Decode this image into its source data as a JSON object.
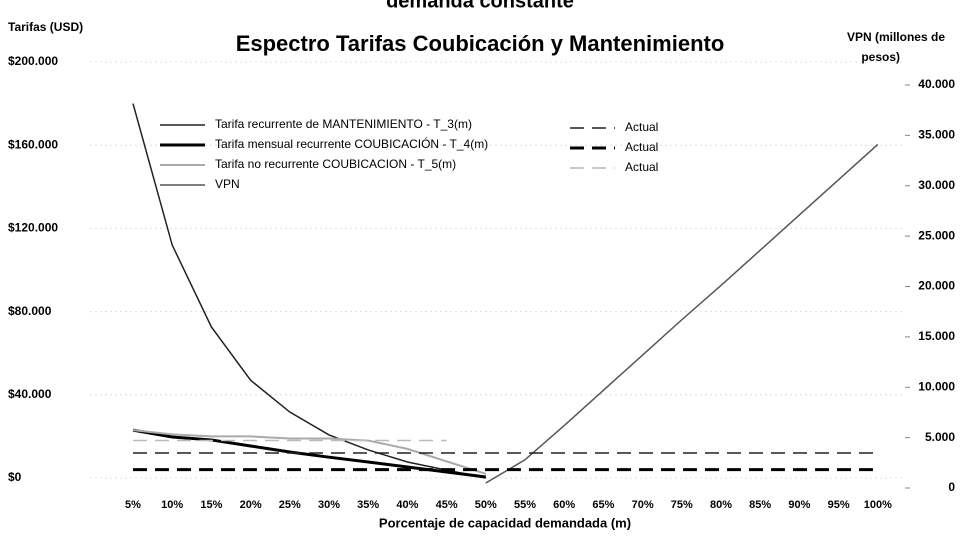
{
  "chart_data": {
    "type": "line",
    "top_title": "demanda constante",
    "title": "Espectro Tarifas Coubicación y Mantenimiento",
    "y_label": "Tarifas (USD)",
    "y2_label": [
      "VPN (millones de",
      "pesos)"
    ],
    "x_label": "Porcentaje de capacidad demandada (m)",
    "categories": [
      "5%",
      "10%",
      "15%",
      "20%",
      "25%",
      "30%",
      "35%",
      "40%",
      "45%",
      "50%",
      "55%",
      "60%",
      "65%",
      "70%",
      "75%",
      "80%",
      "85%",
      "90%",
      "95%",
      "100%"
    ],
    "ylim": [
      0,
      200000
    ],
    "yticks": [
      {
        "value": 0,
        "label": "$0"
      },
      {
        "value": 40000,
        "label": "$40.000"
      },
      {
        "value": 80000,
        "label": "$80.000"
      },
      {
        "value": 120000,
        "label": "$120.000"
      },
      {
        "value": 160000,
        "label": "$160.000"
      },
      {
        "value": 200000,
        "label": "$200.000"
      }
    ],
    "y2lim": [
      0,
      40000
    ],
    "y2ticks": [
      0,
      {
        "value": 5000,
        "label": "5.000"
      },
      {
        "value": 10000,
        "label": "10.000"
      },
      {
        "value": 15000,
        "label": "15.000"
      },
      {
        "value": 20000,
        "label": "20.000"
      },
      {
        "value": 25000,
        "label": "25.000"
      },
      {
        "value": 30000,
        "label": "30.000"
      },
      {
        "value": 35000,
        "label": "35.000"
      },
      {
        "value": 40000,
        "label": "40.000"
      }
    ],
    "grid": true,
    "series": [
      {
        "name": "Tarifa recurrente de MANTENIMIENTO - T_3(m)",
        "color": "#222222",
        "width": 1.5,
        "dashed": false,
        "values": [
          180000,
          112000,
          72600,
          47000,
          31700,
          20700,
          13500,
          7700,
          3800,
          0,
          null,
          null,
          null,
          null,
          null,
          null,
          null,
          null,
          null,
          null
        ]
      },
      {
        "name": "Tarifa mensual recurrente COUBICACIÓN - T_4(m)",
        "color": "#000000",
        "width": 3,
        "dashed": false,
        "values": [
          23000,
          19700,
          18300,
          15400,
          12500,
          10000,
          7700,
          5300,
          2900,
          500,
          null,
          null,
          null,
          null,
          null,
          null,
          null,
          null,
          null,
          null
        ]
      },
      {
        "name": "Tarifa no recurrente COUBICACION - T_5(m)",
        "color": "#aaaaaa",
        "width": 2,
        "dashed": false,
        "values": [
          23000,
          21000,
          20000,
          20000,
          19000,
          19000,
          18000,
          14000,
          8000,
          2000,
          null,
          null,
          null,
          null,
          null,
          null,
          null,
          null,
          null,
          null
        ]
      },
      {
        "name": "VPN",
        "color": "#555555",
        "width": 1.5,
        "dashed": false,
        "axis": "y2",
        "values": [
          null,
          null,
          null,
          null,
          null,
          null,
          null,
          null,
          null,
          500,
          2800,
          6200,
          9700,
          13200,
          16700,
          20100,
          23600,
          27100,
          30600,
          34100
        ]
      },
      {
        "name": "Actual",
        "color": "#222222",
        "width": 1.5,
        "dashed": true,
        "values": [
          12000,
          12000,
          12000,
          12000,
          12000,
          12000,
          12000,
          12000,
          12000,
          12000,
          12000,
          12000,
          12000,
          12000,
          12000,
          12000,
          12000,
          12000,
          12000,
          12000
        ]
      },
      {
        "name": "Actual",
        "color": "#000000",
        "width": 3,
        "dashed": true,
        "values": [
          4000,
          4000,
          4000,
          4000,
          4000,
          4000,
          4000,
          4000,
          4000,
          4000,
          4000,
          4000,
          4000,
          4000,
          4000,
          4000,
          4000,
          4000,
          4000,
          4000
        ]
      },
      {
        "name": "Actual",
        "color": "#bbbbbb",
        "width": 1.5,
        "dashed": true,
        "values": [
          18000,
          18000,
          18000,
          18000,
          18000,
          18000,
          18000,
          18000,
          18000,
          null,
          null,
          null,
          null,
          null,
          null,
          null,
          null,
          null,
          null,
          null
        ]
      }
    ]
  }
}
